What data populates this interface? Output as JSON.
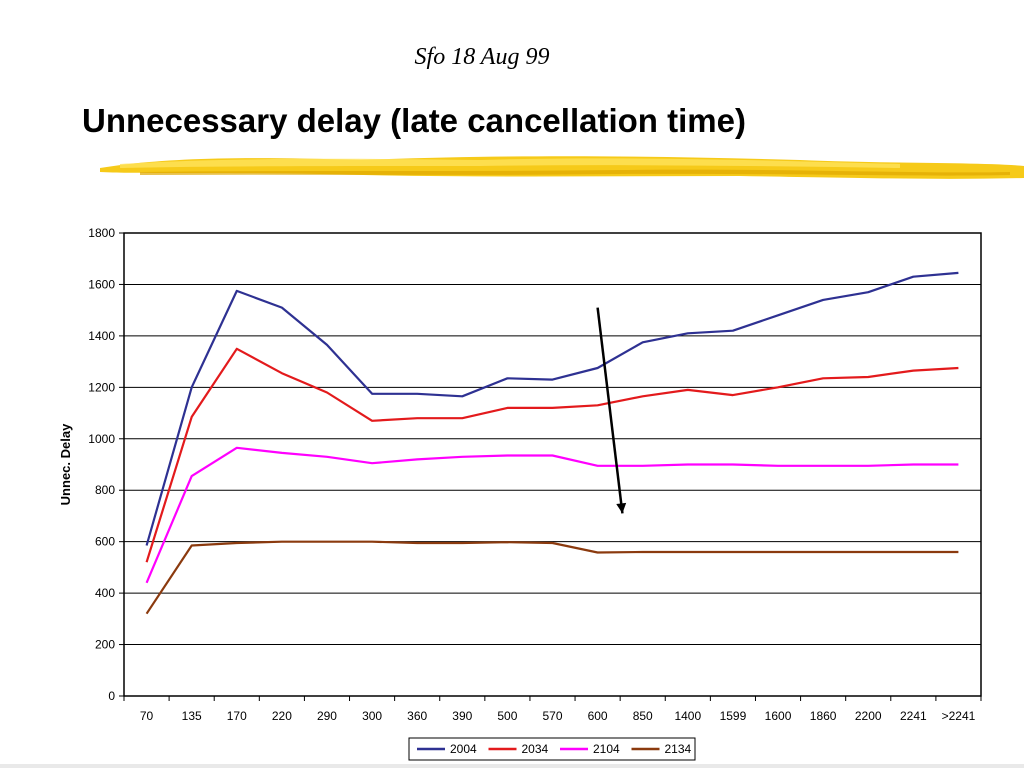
{
  "slide": {
    "subtitle": "Sfo 18 Aug 99",
    "title": "Unnecessary delay (late cancellation time)"
  },
  "colors": {
    "brush": "#f5c400",
    "series_2004": "#2e3192",
    "series_2034": "#e31a1c",
    "series_2104": "#ff00ff",
    "series_2134": "#8b3a0e",
    "arrow": "#000000"
  },
  "chart_data": {
    "type": "line",
    "ylabel": "Unnec. Delay",
    "xlabel": "",
    "ylim": [
      0,
      1800
    ],
    "yticks": [
      0,
      200,
      400,
      600,
      800,
      1000,
      1200,
      1400,
      1600,
      1800
    ],
    "grid": true,
    "legend_position": "bottom",
    "categories": [
      "70",
      "135",
      "170",
      "220",
      "290",
      "300",
      "360",
      "390",
      "500",
      "570",
      "600",
      "850",
      "1400",
      "1599",
      "1600",
      "1860",
      "2200",
      "2241",
      ">2241"
    ],
    "series": [
      {
        "name": "2004",
        "color": "#2e3192",
        "values": [
          585,
          1200,
          1575,
          1510,
          1365,
          1175,
          1175,
          1165,
          1235,
          1230,
          1275,
          1375,
          1410,
          1420,
          1480,
          1540,
          1570,
          1630,
          1645
        ]
      },
      {
        "name": "2034",
        "color": "#e31a1c",
        "values": [
          520,
          1085,
          1350,
          1255,
          1180,
          1070,
          1080,
          1080,
          1120,
          1120,
          1130,
          1165,
          1190,
          1170,
          1200,
          1235,
          1240,
          1265,
          1275
        ]
      },
      {
        "name": "2104",
        "color": "#ff00ff",
        "values": [
          440,
          855,
          965,
          945,
          930,
          905,
          920,
          930,
          935,
          935,
          895,
          895,
          900,
          900,
          895,
          895,
          895,
          900,
          900
        ]
      },
      {
        "name": "2134",
        "color": "#8b3a0e",
        "values": [
          320,
          585,
          595,
          600,
          600,
          600,
          595,
          595,
          598,
          595,
          558,
          560,
          560,
          560,
          560,
          560,
          560,
          560,
          560
        ]
      }
    ],
    "annotation": {
      "type": "arrow",
      "from": {
        "x": "600",
        "y": 1510
      },
      "to": {
        "x": "850",
        "y": 710
      }
    }
  }
}
